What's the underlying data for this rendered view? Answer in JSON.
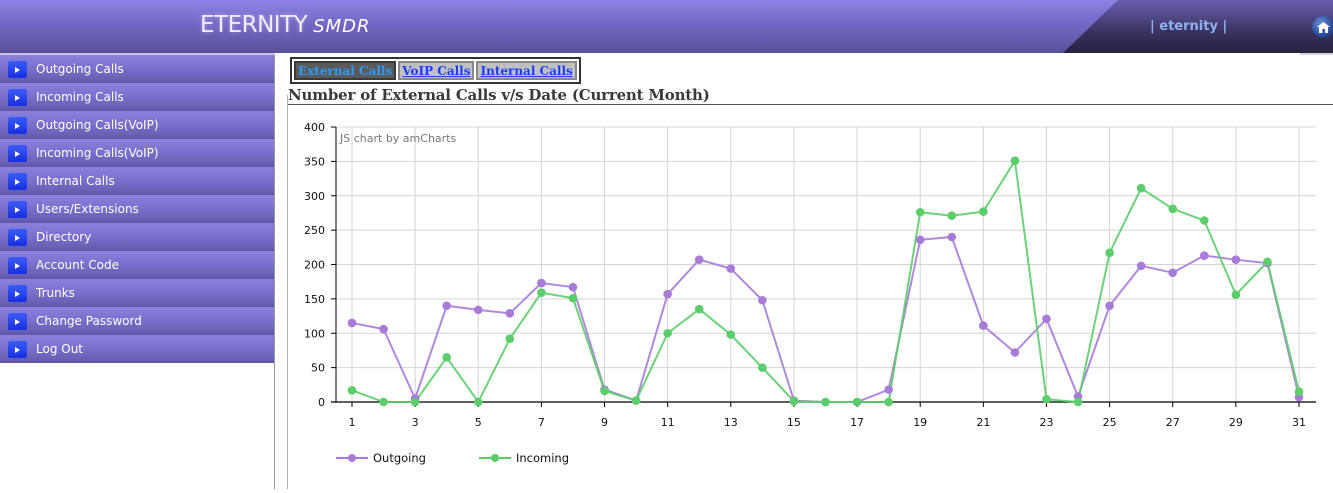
{
  "header": {
    "brand": "ETERNITY",
    "product": "SMDR",
    "user_link": "| eternity |",
    "home_icon": "home-icon"
  },
  "sidebar": {
    "items": [
      {
        "label": "Outgoing Calls",
        "icon": "arrow-right-icon"
      },
      {
        "label": "Incoming Calls",
        "icon": "arrow-right-icon"
      },
      {
        "label": "Outgoing Calls(VoIP)",
        "icon": "arrow-right-icon"
      },
      {
        "label": "Incoming Calls(VoIP)",
        "icon": "arrow-right-icon"
      },
      {
        "label": "Internal Calls",
        "icon": "arrow-right-icon"
      },
      {
        "label": "Users/Extensions",
        "icon": "arrow-right-icon"
      },
      {
        "label": "Directory",
        "icon": "arrow-right-icon"
      },
      {
        "label": "Account Code",
        "icon": "arrow-right-icon"
      },
      {
        "label": "Trunks",
        "icon": "arrow-right-icon"
      },
      {
        "label": "Change Password",
        "icon": "arrow-right-icon"
      },
      {
        "label": "Log Out",
        "icon": "arrow-right-icon"
      }
    ]
  },
  "main": {
    "tabs": [
      {
        "label": "External Calls",
        "active": true
      },
      {
        "label": "VoIP Calls",
        "active": false
      },
      {
        "label": "Internal Calls",
        "active": false
      }
    ],
    "title": "Number of External Calls v/s Date (Current Month)"
  },
  "colors": {
    "outgoing": "#a97bd9",
    "incoming": "#5ccd6b",
    "tab_active_text": "#2b9bff",
    "tab_link": "#1a3dff"
  },
  "chart_data": {
    "type": "line",
    "title": "Number of External Calls v/s Date (Current Month)",
    "credit": "JS chart by amCharts",
    "xlabel": "",
    "ylabel": "",
    "ylim": [
      0,
      400
    ],
    "yticks": [
      0,
      50,
      100,
      150,
      200,
      250,
      300,
      350,
      400
    ],
    "x": [
      1,
      2,
      3,
      4,
      5,
      6,
      7,
      8,
      9,
      10,
      11,
      12,
      13,
      14,
      15,
      16,
      17,
      18,
      19,
      20,
      21,
      22,
      23,
      24,
      25,
      26,
      27,
      28,
      29,
      30,
      31
    ],
    "xtick_labels": [
      "1",
      "3",
      "5",
      "7",
      "9",
      "11",
      "13",
      "15",
      "17",
      "19",
      "21",
      "23",
      "25",
      "27",
      "29",
      "31"
    ],
    "grid": true,
    "legend_position": "bottom-left",
    "series": [
      {
        "name": "Outgoing",
        "color": "#a97bd9",
        "values": [
          115,
          106,
          5,
          140,
          134,
          129,
          173,
          167,
          18,
          2,
          157,
          207,
          194,
          148,
          2,
          0,
          0,
          18,
          236,
          240,
          111,
          72,
          121,
          8,
          140,
          198,
          188,
          213,
          207,
          202,
          7
        ]
      },
      {
        "name": "Incoming",
        "color": "#5ccd6b",
        "values": [
          17,
          0,
          0,
          65,
          0,
          92,
          159,
          151,
          16,
          2,
          100,
          135,
          98,
          50,
          1,
          0,
          0,
          0,
          276,
          271,
          277,
          351,
          4,
          0,
          217,
          311,
          281,
          264,
          156,
          204,
          15
        ]
      }
    ]
  }
}
